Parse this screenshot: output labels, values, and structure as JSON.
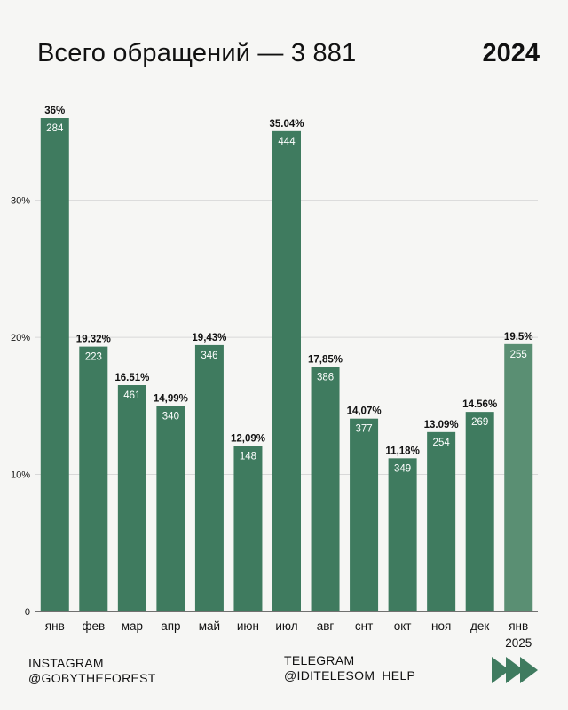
{
  "header": {
    "title": "Всего обращений — 3 881",
    "year": "2024"
  },
  "chart_data": {
    "type": "bar",
    "categories": [
      "янв",
      "фев",
      "мар",
      "апр",
      "май",
      "июн",
      "июл",
      "авг",
      "снт",
      "окт",
      "ноя",
      "дек",
      "янв"
    ],
    "category_sublabels": [
      "",
      "",
      "",
      "",
      "",
      "",
      "",
      "",
      "",
      "",
      "",
      "",
      "2025"
    ],
    "values": [
      36,
      19.32,
      16.51,
      14.99,
      19.43,
      12.09,
      35.04,
      17.85,
      14.07,
      11.18,
      13.09,
      14.56,
      19.5
    ],
    "percent_labels": [
      "36%",
      "19.32%",
      "16.51%",
      "14,99%",
      "19,43%",
      "12,09%",
      "35.04%",
      "17,85%",
      "14,07%",
      "11,18%",
      "13.09%",
      "14.56%",
      "19.5%"
    ],
    "counts": [
      "284",
      "223",
      "461",
      "340",
      "346",
      "148",
      "444",
      "386",
      "377",
      "349",
      "254",
      "269",
      "255"
    ],
    "ylim": [
      0,
      36
    ],
    "yticks": [
      0,
      10,
      20,
      30
    ],
    "ytick_labels": [
      "0",
      "10%",
      "20%",
      "30%"
    ],
    "grid": true,
    "colors": {
      "bar": "#3f7b5f",
      "bar_highlight": "#5a8f73",
      "grid": "#d8d8d8",
      "axis": "#222222"
    }
  },
  "footer": {
    "instagram_label": "INSTAGRAM",
    "instagram_handle": "@GOBYTHEFOREST",
    "telegram_label": "TELEGRAM",
    "telegram_handle": "@IDITELESOM_HELP",
    "arrow_icon": "forward-arrows-icon",
    "arrow_color": "#3f7b5f"
  }
}
